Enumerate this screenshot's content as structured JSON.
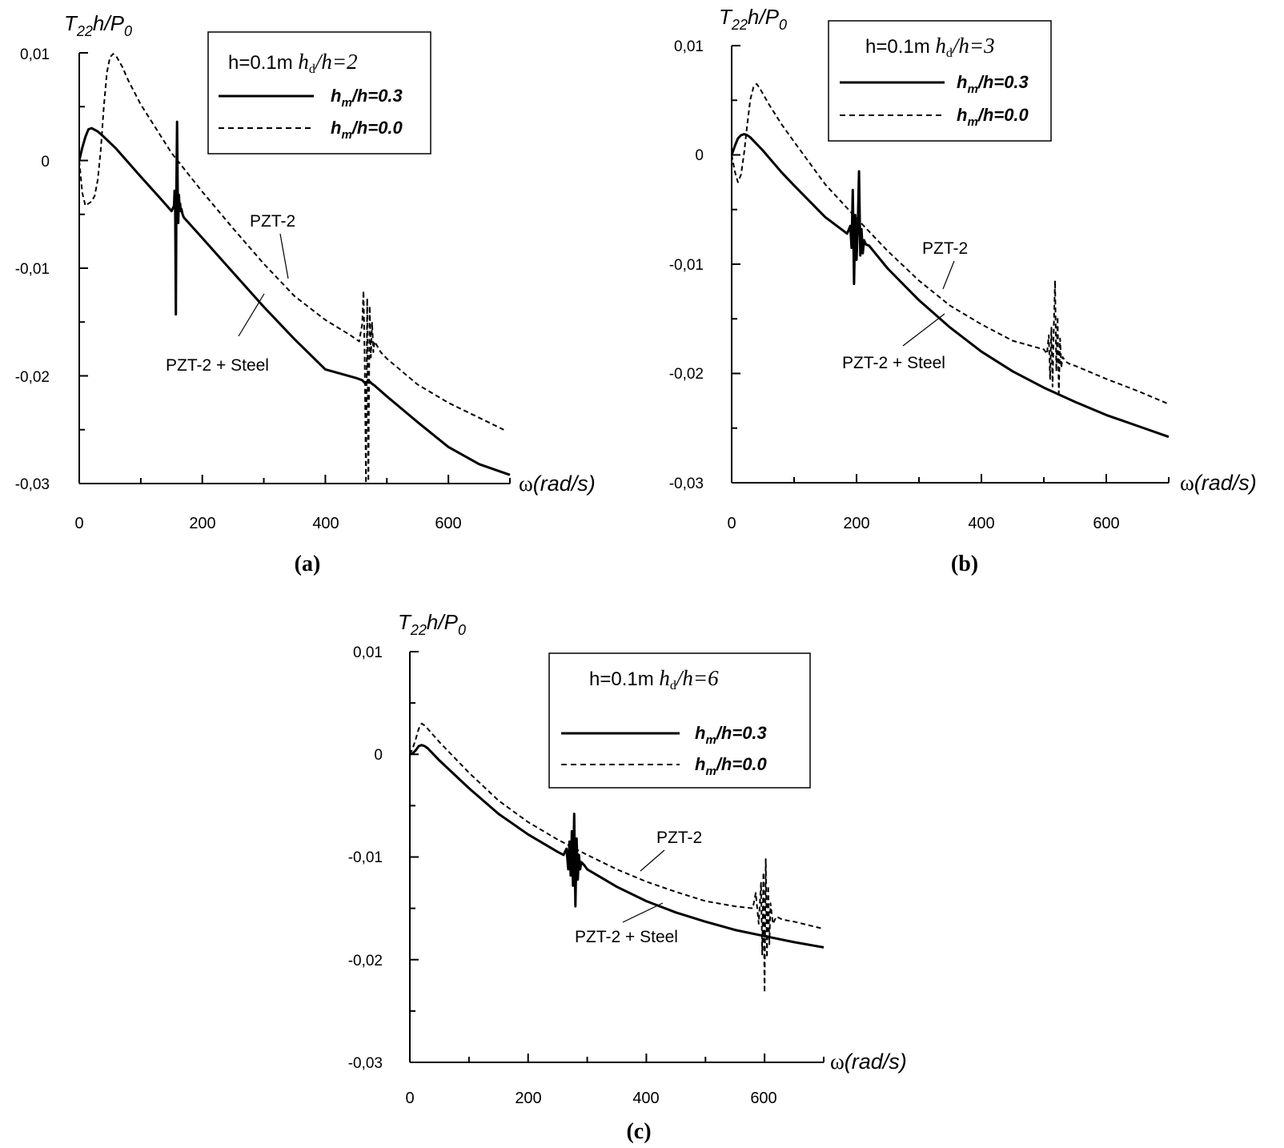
{
  "figure": {
    "y_label_main": "T",
    "y_label_sub1": "22",
    "y_label_mid": "h/P",
    "y_label_sub2": "0",
    "x_label_symbol": "ω",
    "x_label_units": "(rad/s)"
  },
  "chart_data": [
    {
      "type": "line",
      "panel_label": "(a)",
      "legend_title_prefix": "h=0.1m ",
      "legend_title_var": "h",
      "legend_title_sub": "d",
      "legend_title_suffix": "/h=2",
      "xlim": [
        0,
        700
      ],
      "ylim": [
        -0.03,
        0.01
      ],
      "x_ticks": [
        0,
        200,
        400,
        600
      ],
      "x_tick_labels": [
        "0",
        "200",
        "400",
        "600"
      ],
      "y_ticks": [
        0.01,
        0,
        -0.01,
        -0.02,
        -0.03
      ],
      "y_tick_labels": [
        "0,01",
        "0",
        "-0,01",
        "-0,02",
        "-0,03"
      ],
      "series": [
        {
          "name": "h_m/h=0.3",
          "label_main": "h",
          "label_sub": "m",
          "label_rest": "/h=0.3",
          "annotation": "PZT-2 + Steel",
          "style": "solid",
          "x": [
            0,
            5,
            10,
            15,
            20,
            30,
            40,
            60,
            80,
            100,
            130,
            150,
            154,
            155,
            156,
            157,
            158,
            159,
            160,
            161,
            162,
            163,
            164,
            165,
            166,
            168,
            170,
            200,
            250,
            300,
            350,
            400,
            450,
            460,
            465,
            470,
            475,
            480,
            500,
            550,
            600,
            650,
            700
          ],
          "y": [
            0.0,
            0.0012,
            0.0022,
            0.0029,
            0.003,
            0.0027,
            0.0022,
            0.0011,
            -0.0002,
            -0.0015,
            -0.0034,
            -0.0047,
            -0.0042,
            -0.0028,
            -0.0048,
            -0.0143,
            -0.0025,
            0.0036,
            -0.003,
            -0.0058,
            -0.0032,
            -0.0044,
            -0.004,
            -0.0047,
            -0.0045,
            -0.005,
            -0.0053,
            -0.0072,
            -0.0104,
            -0.0136,
            -0.0166,
            -0.0194,
            -0.0202,
            -0.0204,
            -0.0207,
            -0.0204,
            -0.0207,
            -0.0209,
            -0.0219,
            -0.0243,
            -0.0266,
            -0.0282,
            -0.0292
          ]
        },
        {
          "name": "h_m/h=0.0",
          "label_main": "h",
          "label_sub": "m",
          "label_rest": "/h=0.0",
          "annotation": "PZT-2",
          "style": "dashed",
          "x": [
            0,
            5,
            10,
            20,
            25,
            30,
            35,
            40,
            45,
            50,
            55,
            60,
            70,
            80,
            100,
            150,
            200,
            250,
            300,
            350,
            400,
            440,
            455,
            458,
            460,
            462,
            464,
            466,
            468,
            470,
            472,
            474,
            476,
            478,
            480,
            485,
            490,
            500,
            550,
            600,
            690
          ],
          "y": [
            0.0,
            -0.003,
            -0.0042,
            -0.0038,
            -0.0033,
            -0.0018,
            0.001,
            0.005,
            0.0082,
            0.0096,
            0.0099,
            0.0097,
            0.0087,
            0.0074,
            0.0052,
            0.0007,
            -0.0029,
            -0.0063,
            -0.0096,
            -0.0126,
            -0.0148,
            -0.0162,
            -0.0168,
            -0.0158,
            -0.0152,
            -0.0121,
            -0.0185,
            -0.03,
            -0.0128,
            -0.0298,
            -0.0135,
            -0.0183,
            -0.015,
            -0.0178,
            -0.0168,
            -0.0173,
            -0.0178,
            -0.0184,
            -0.0208,
            -0.0225,
            -0.025
          ]
        }
      ],
      "annotations": [
        "PZT-2",
        "PZT-2 + Steel"
      ]
    },
    {
      "type": "line",
      "panel_label": "(b)",
      "legend_title_prefix": "h=0.1m ",
      "legend_title_var": "h",
      "legend_title_sub": "d",
      "legend_title_suffix": "/h=3",
      "xlim": [
        0,
        700
      ],
      "ylim": [
        -0.03,
        0.01
      ],
      "x_ticks": [
        0,
        200,
        400,
        600
      ],
      "x_tick_labels": [
        "0",
        "200",
        "400",
        "600"
      ],
      "y_ticks": [
        0.01,
        0,
        -0.01,
        -0.02,
        -0.03
      ],
      "y_tick_labels": [
        "0,01",
        "0",
        "-0,01",
        "-0,02",
        "-0,03"
      ],
      "series": [
        {
          "name": "h_m/h=0.3",
          "label_main": "h",
          "label_sub": "m",
          "label_rest": "/h=0.3",
          "annotation": "PZT-2 + Steel",
          "style": "solid",
          "x": [
            0,
            5,
            10,
            15,
            20,
            25,
            30,
            50,
            80,
            100,
            150,
            185,
            190,
            192,
            194,
            196,
            198,
            200,
            202,
            204,
            206,
            208,
            210,
            212,
            215,
            220,
            250,
            300,
            350,
            400,
            450,
            500,
            550,
            600,
            650,
            700
          ],
          "y": [
            0.0,
            0.0008,
            0.0015,
            0.0018,
            0.0019,
            0.0018,
            0.0016,
            0.0004,
            -0.0016,
            -0.0028,
            -0.0057,
            -0.0072,
            -0.0065,
            -0.0085,
            -0.0032,
            -0.0118,
            -0.0055,
            -0.0096,
            -0.0065,
            -0.0015,
            -0.0092,
            -0.0068,
            -0.009,
            -0.0078,
            -0.0082,
            -0.0083,
            -0.0104,
            -0.0133,
            -0.0158,
            -0.018,
            -0.0198,
            -0.0213,
            -0.0226,
            -0.0238,
            -0.0248,
            -0.0258
          ]
        },
        {
          "name": "h_m/h=0.0",
          "label_main": "h",
          "label_sub": "m",
          "label_rest": "/h=0.0",
          "annotation": "PZT-2",
          "style": "dashed",
          "x": [
            0,
            5,
            10,
            15,
            20,
            25,
            30,
            35,
            40,
            45,
            50,
            60,
            80,
            100,
            150,
            200,
            250,
            300,
            350,
            400,
            450,
            500,
            505,
            508,
            510,
            512,
            514,
            516,
            518,
            520,
            522,
            524,
            526,
            528,
            530,
            535,
            540,
            550,
            600,
            650,
            700
          ],
          "y": [
            0.0,
            -0.0015,
            -0.0025,
            -0.0018,
            0.0002,
            0.0028,
            0.0051,
            0.0062,
            0.0065,
            0.0061,
            0.0056,
            0.0046,
            0.0028,
            0.0012,
            -0.0027,
            -0.0058,
            -0.0088,
            -0.0115,
            -0.0138,
            -0.0155,
            -0.017,
            -0.0178,
            -0.0182,
            -0.0165,
            -0.0205,
            -0.0158,
            -0.0212,
            -0.0155,
            -0.0115,
            -0.0198,
            -0.0148,
            -0.0218,
            -0.0168,
            -0.0195,
            -0.0185,
            -0.0189,
            -0.0191,
            -0.0193,
            -0.0205,
            -0.0216,
            -0.0228
          ]
        }
      ],
      "annotations": [
        "PZT-2",
        "PZT-2 + Steel"
      ]
    },
    {
      "type": "line",
      "panel_label": "(c)",
      "legend_title_prefix": "h=0.1m ",
      "legend_title_var": "h",
      "legend_title_sub": "d",
      "legend_title_suffix": "/h=6",
      "xlim": [
        0,
        700
      ],
      "ylim": [
        -0.03,
        0.01
      ],
      "x_ticks": [
        0,
        200,
        400,
        600
      ],
      "x_tick_labels": [
        "0",
        "200",
        "400",
        "600"
      ],
      "y_ticks": [
        0.01,
        0,
        -0.01,
        -0.02,
        -0.03
      ],
      "y_tick_labels": [
        "0,01",
        "0",
        "-0,01",
        "-0,02",
        "-0,03"
      ],
      "series": [
        {
          "name": "h_m/h=0.3",
          "label_main": "h",
          "label_sub": "m",
          "label_rest": "/h=0.3",
          "annotation": "PZT-2 + Steel",
          "style": "solid",
          "x": [
            0,
            5,
            10,
            15,
            20,
            25,
            30,
            50,
            100,
            150,
            200,
            250,
            260,
            265,
            268,
            270,
            272,
            274,
            276,
            278,
            280,
            282,
            284,
            286,
            288,
            290,
            295,
            300,
            350,
            400,
            450,
            500,
            550,
            600,
            650,
            700
          ],
          "y": [
            0.0,
            0.0001,
            0.0004,
            0.0008,
            0.0009,
            0.0008,
            0.0006,
            -0.0006,
            -0.0033,
            -0.0058,
            -0.0078,
            -0.0095,
            -0.0098,
            -0.0092,
            -0.0112,
            -0.0085,
            -0.0118,
            -0.0075,
            -0.0128,
            -0.0058,
            -0.0148,
            -0.0082,
            -0.0122,
            -0.0098,
            -0.0112,
            -0.0105,
            -0.0108,
            -0.0112,
            -0.0129,
            -0.0143,
            -0.0154,
            -0.0163,
            -0.0171,
            -0.0177,
            -0.0183,
            -0.0188
          ]
        },
        {
          "name": "h_m/h=0.0",
          "label_main": "h",
          "label_sub": "m",
          "label_rest": "/h=0.0",
          "annotation": "PZT-2",
          "style": "dashed",
          "x": [
            0,
            5,
            10,
            15,
            20,
            25,
            30,
            50,
            100,
            150,
            200,
            250,
            300,
            350,
            400,
            450,
            500,
            550,
            580,
            585,
            590,
            594,
            596,
            598,
            600,
            602,
            604,
            606,
            608,
            610,
            614,
            620,
            630,
            650,
            700
          ],
          "y": [
            0.0,
            0.0006,
            0.0015,
            0.0025,
            0.003,
            0.0028,
            0.0025,
            0.0012,
            -0.0018,
            -0.0045,
            -0.0066,
            -0.0083,
            -0.0098,
            -0.0112,
            -0.0124,
            -0.0134,
            -0.0143,
            -0.0148,
            -0.015,
            -0.0135,
            -0.0165,
            -0.0125,
            -0.0195,
            -0.0115,
            -0.0232,
            -0.0102,
            -0.0198,
            -0.0128,
            -0.0185,
            -0.0145,
            -0.0165,
            -0.0158,
            -0.0161,
            -0.0163,
            -0.017
          ]
        }
      ],
      "annotations": [
        "PZT-2",
        "PZT-2 + Steel"
      ]
    }
  ]
}
